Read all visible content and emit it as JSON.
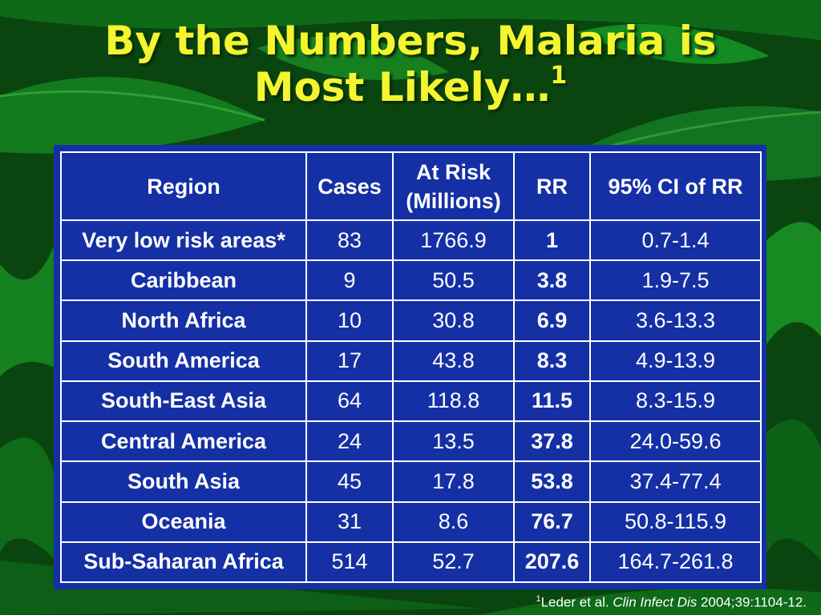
{
  "slide": {
    "title_line1": "By the Numbers, Malaria is",
    "title_line2": "Most Likely…",
    "title_sup": "1"
  },
  "table": {
    "headers": {
      "region": "Region",
      "cases": "Cases",
      "at_risk_line1": "At Risk",
      "at_risk_line2": "(Millions)",
      "rr": "RR",
      "ci": "95% CI of RR"
    },
    "rows": [
      {
        "region": "Very low risk areas*",
        "cases": "83",
        "at_risk": "1766.9",
        "rr": "1",
        "ci": "0.7-1.4"
      },
      {
        "region": "Caribbean",
        "cases": "9",
        "at_risk": "50.5",
        "rr": "3.8",
        "ci": "1.9-7.5"
      },
      {
        "region": "North Africa",
        "cases": "10",
        "at_risk": "30.8",
        "rr": "6.9",
        "ci": "3.6-13.3"
      },
      {
        "region": "South America",
        "cases": "17",
        "at_risk": "43.8",
        "rr": "8.3",
        "ci": "4.9-13.9"
      },
      {
        "region": "South-East Asia",
        "cases": "64",
        "at_risk": "118.8",
        "rr": "11.5",
        "ci": "8.3-15.9"
      },
      {
        "region": "Central America",
        "cases": "24",
        "at_risk": "13.5",
        "rr": "37.8",
        "ci": "24.0-59.6"
      },
      {
        "region": "South Asia",
        "cases": "45",
        "at_risk": "17.8",
        "rr": "53.8",
        "ci": "37.4-77.4"
      },
      {
        "region": "Oceania",
        "cases": "31",
        "at_risk": "8.6",
        "rr": "76.7",
        "ci": "50.8-115.9"
      },
      {
        "region": "Sub-Saharan Africa",
        "cases": "514",
        "at_risk": "52.7",
        "rr": "207.6",
        "ci": "164.7-261.8"
      }
    ]
  },
  "footnote": {
    "sup": "1",
    "author": "Leder et al.",
    "journal": "Clin Infect Dis",
    "citation": "2004;39:1104-12."
  },
  "colors": {
    "background": "#0b4a12",
    "title": "#f4f430",
    "table_bg": "#1530a5"
  }
}
